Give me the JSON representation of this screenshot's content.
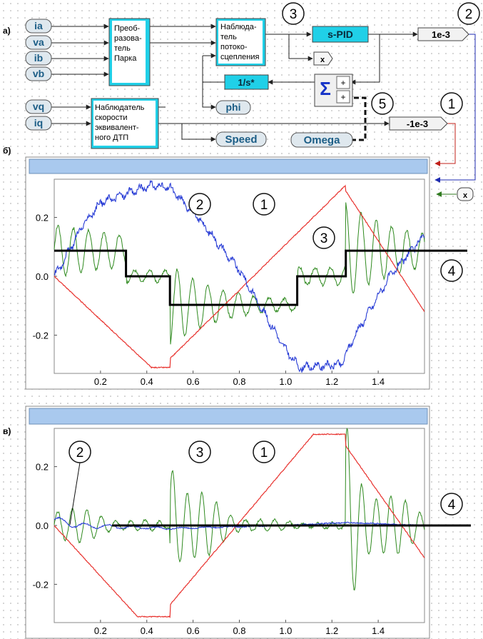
{
  "section_labels": {
    "a": "а)",
    "b": "б)",
    "c": "в)"
  },
  "inputs_top": [
    "ia",
    "va",
    "ib",
    "vb"
  ],
  "inputs_bottom": [
    "vq",
    "iq"
  ],
  "blocks": {
    "park": [
      "Преоб-",
      "разова-",
      "тель",
      "Парка"
    ],
    "flux_observer": [
      "Наблюда-",
      "тель",
      "потоко-",
      "сцепления"
    ],
    "speed_observer": [
      "Наблюдатель",
      "скорости",
      "эквивалент-",
      "ного ДТП"
    ],
    "spid": "s-PID",
    "gain_pos": "1e-3",
    "gain_neg": "-1e-3",
    "integrator": "1/s*",
    "sum": "Σ",
    "sum_signs": [
      "+",
      "+"
    ],
    "x_out": "x",
    "phi": "phi",
    "speed": "Speed",
    "omega": "Omega",
    "x_right": "x"
  },
  "callouts": {
    "c1": "1",
    "c2": "2",
    "c3": "3",
    "c5": "5"
  },
  "plot_b": {
    "x_ticks": [
      "0.2",
      "0.4",
      "0.6",
      "0.8",
      "1.0",
      "1.2",
      "1.4"
    ],
    "y_ticks": [
      "0.2",
      "0.0",
      "-0.2"
    ],
    "callouts": [
      "1",
      "2",
      "3",
      "4"
    ]
  },
  "plot_c": {
    "x_ticks": [
      "0.2",
      "0.4",
      "0.6",
      "0.8",
      "1.0",
      "1.2",
      "1.4"
    ],
    "y_ticks": [
      "0.2",
      "0.0",
      "-0.2"
    ],
    "callouts": [
      "1",
      "2",
      "3",
      "4"
    ]
  },
  "colors": {
    "line1": "#e8322e",
    "line2": "#2b3fd6",
    "line3": "#2f8a1f",
    "line4": "#000000",
    "block_cyan": "#20d0e8",
    "titlebar": "#a9c9ee",
    "port": "#dfe8ee"
  },
  "chart_data": [
    {
      "type": "line",
      "panel": "б",
      "xlim": [
        0,
        1.6
      ],
      "ylim": [
        -0.33,
        0.33
      ],
      "series": [
        {
          "name": "1",
          "x": [
            0,
            0.42,
            0.5,
            0.5,
            1.26,
            1.26,
            1.6
          ],
          "values": [
            0,
            -0.31,
            -0.31,
            -0.28,
            0.31,
            0.29,
            -0.12
          ]
        },
        {
          "name": "2",
          "x": [
            0,
            0.06,
            0.12,
            0.2,
            0.42,
            0.5,
            0.62,
            0.8,
            1.0,
            1.06,
            1.24,
            1.3,
            1.45,
            1.6
          ],
          "values": [
            0,
            0.08,
            0.17,
            0.25,
            0.31,
            0.3,
            0.2,
            0.02,
            -0.25,
            -0.31,
            -0.3,
            -0.2,
            0.0,
            0.14
          ]
        },
        {
          "name": "3",
          "x": [
            0,
            0.31,
            0.5,
            1.05,
            1.26,
            1.6
          ],
          "values": [
            0.02,
            0.0,
            -0.1,
            0.0,
            0.08,
            0.05
          ]
        },
        {
          "name": "4",
          "x": [
            0,
            0.31,
            0.31,
            0.5,
            0.5,
            1.05,
            1.05,
            1.26,
            1.26,
            1.6
          ],
          "values": [
            0.087,
            0.087,
            0,
            0,
            -0.097,
            -0.097,
            0,
            0,
            0.087,
            0.087
          ]
        }
      ]
    },
    {
      "type": "line",
      "panel": "в",
      "xlim": [
        0,
        1.6
      ],
      "ylim": [
        -0.33,
        0.33
      ],
      "series": [
        {
          "name": "1",
          "x": [
            0,
            0.36,
            0.5,
            0.5,
            1.12,
            1.26,
            1.26,
            1.6
          ],
          "values": [
            0,
            -0.31,
            -0.31,
            -0.27,
            0.31,
            0.31,
            0.27,
            -0.11
          ]
        },
        {
          "name": "2",
          "x": [
            0,
            0.1,
            0.5,
            1.0,
            1.26,
            1.6
          ],
          "values": [
            0.02,
            0.0,
            -0.01,
            0.0,
            0.01,
            0.0
          ]
        },
        {
          "name": "3",
          "x": [
            0,
            0.5,
            0.52,
            1.26,
            1.3,
            1.6
          ],
          "values": [
            0.04,
            0.0,
            0.3,
            0.0,
            -0.3,
            0.05
          ]
        },
        {
          "name": "4",
          "x": [
            0,
            1.6
          ],
          "values": [
            0,
            0
          ]
        }
      ]
    }
  ]
}
